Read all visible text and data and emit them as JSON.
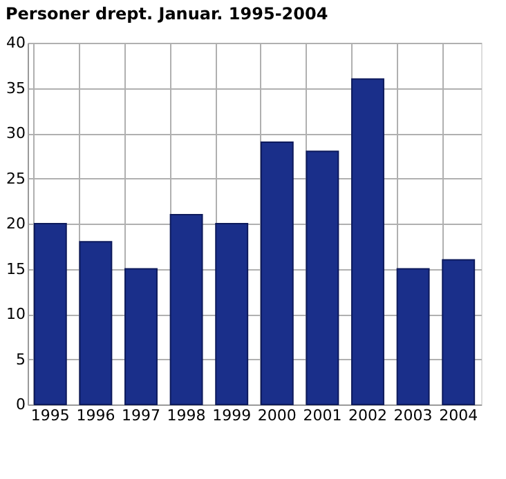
{
  "chart_data": {
    "type": "bar",
    "title": "Personer drept. Januar. 1995-2004",
    "categories": [
      "1995",
      "1996",
      "1997",
      "1998",
      "1999",
      "2000",
      "2001",
      "2002",
      "2003",
      "2004"
    ],
    "values": [
      20,
      18,
      15,
      21,
      20,
      29,
      28,
      36,
      15,
      16
    ],
    "color": "#1a2f8a",
    "ylim": [
      0,
      40
    ],
    "yticks": [
      0,
      5,
      10,
      15,
      20,
      25,
      30,
      35,
      40
    ],
    "grid": true
  }
}
